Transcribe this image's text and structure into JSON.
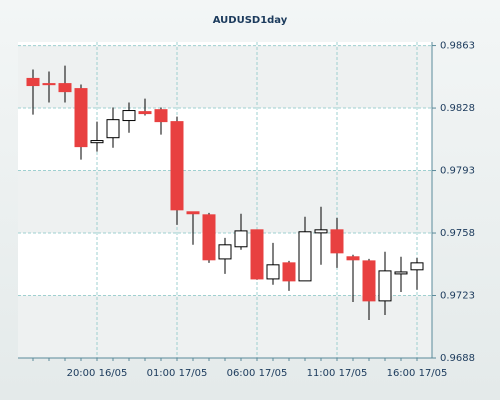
{
  "chart_data": {
    "type": "candlestick",
    "title": "AUDUSD1day",
    "categories": [
      null,
      null,
      null,
      null,
      "20:00 16/05",
      null,
      null,
      null,
      null,
      "01:00 17/05",
      null,
      null,
      null,
      null,
      "06:00 17/05",
      null,
      null,
      null,
      null,
      "11:00 17/05",
      null,
      null,
      null,
      null,
      "16:00 17/05"
    ],
    "open": [
      0.98446,
      0.98417,
      0.98417,
      0.98389,
      0.98086,
      0.98114,
      0.9821,
      0.9826,
      0.98271,
      0.98204,
      0.97699,
      0.97682,
      0.97435,
      0.97503,
      0.97598,
      0.97323,
      0.97413,
      0.97312,
      0.97581,
      0.97598,
      0.97447,
      0.97424,
      0.972,
      0.97351,
      0.97374
    ],
    "high": [
      0.98496,
      0.98485,
      0.98518,
      0.98412,
      0.98204,
      0.98283,
      0.98311,
      0.98333,
      0.98283,
      0.98232,
      0.97699,
      0.97693,
      0.97553,
      0.97688,
      0.97598,
      0.97525,
      0.97424,
      0.97671,
      0.97727,
      0.97665,
      0.97458,
      0.97435,
      0.97475,
      0.97447,
      0.97441
    ],
    "low": [
      0.98243,
      0.98311,
      0.98311,
      0.97991,
      0.98036,
      0.98058,
      0.98142,
      0.98238,
      0.98131,
      0.97626,
      0.97514,
      0.97413,
      0.97351,
      0.97486,
      0.97318,
      0.9729,
      0.97256,
      0.97312,
      0.97402,
      0.97385,
      0.97194,
      0.97093,
      0.97121,
      0.9725,
      0.97262
    ],
    "close": [
      0.98406,
      0.98411,
      0.98372,
      0.98064,
      0.98098,
      0.98215,
      0.98266,
      0.98249,
      0.98204,
      0.9771,
      0.97688,
      0.9743,
      0.97514,
      0.97592,
      0.97323,
      0.97402,
      0.97312,
      0.97587,
      0.97598,
      0.97469,
      0.9743,
      0.972,
      0.97368,
      0.97362,
      0.97413
    ],
    "up_color": "#ffffff",
    "down_color": "#e84040",
    "ylim": [
      0.9688,
      0.9865
    ],
    "yticks": [
      0.9688,
      0.9723,
      0.9758,
      0.9793,
      0.9828,
      0.9863
    ],
    "grid": true
  }
}
